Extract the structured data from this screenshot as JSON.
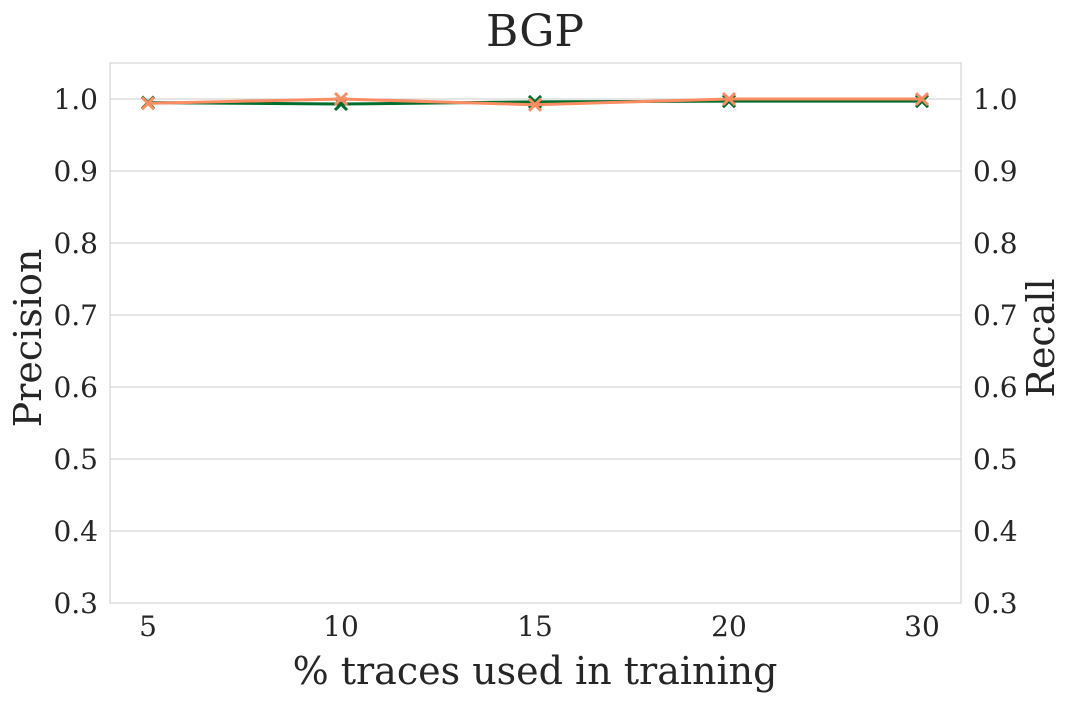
{
  "chart_data": {
    "type": "line",
    "title": "BGP",
    "xlabel": "% traces used in training",
    "ylabel_left": "Precision",
    "ylabel_right": "Recall",
    "categories": [
      "5",
      "10",
      "15",
      "20",
      "30"
    ],
    "ylim": [
      0.3,
      1.05
    ],
    "yticks": [
      0.3,
      0.4,
      0.5,
      0.6,
      0.7,
      0.8,
      0.9,
      1.0
    ],
    "ytick_labels": [
      "0.3",
      "0.4",
      "0.5",
      "0.6",
      "0.7",
      "0.8",
      "0.9",
      "1.0"
    ],
    "grid": "horizontal",
    "series": [
      {
        "axis": "left",
        "color": "#006d2c",
        "marker": "x",
        "values": [
          0.995,
          0.993,
          0.996,
          0.997,
          0.997
        ]
      },
      {
        "axis": "right",
        "color": "#fc8d62",
        "marker": "x",
        "values": [
          0.994,
          1.0,
          0.992,
          1.0,
          1.0
        ]
      }
    ],
    "colors": {
      "precision_label": "#006d2c",
      "recall_label": "#fc8d62"
    }
  }
}
